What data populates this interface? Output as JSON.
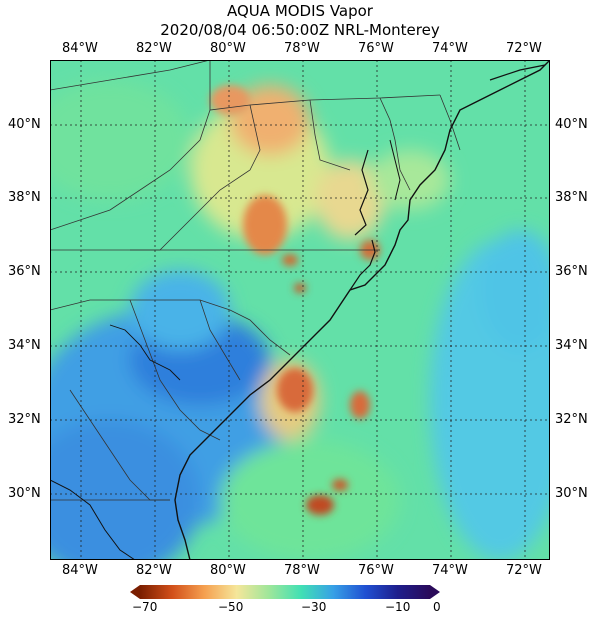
{
  "title_line1": "AQUA MODIS Vapor",
  "title_line2": "2020/08/04 06:50:00Z NRL-Monterey",
  "lon_labels": [
    "84°W",
    "82°W",
    "80°W",
    "78°W",
    "76°W",
    "74°W",
    "72°W"
  ],
  "lat_labels": [
    "40°N",
    "38°N",
    "36°N",
    "34°N",
    "32°N",
    "30°N"
  ],
  "colorbar": {
    "ticks": [
      "−70",
      "−50",
      "−30",
      "−10",
      "0"
    ],
    "colors": [
      "#7a1e00",
      "#d2501a",
      "#f5a050",
      "#f5e69a",
      "#9fe69a",
      "#41e0b4",
      "#37a0e6",
      "#2050d2",
      "#1e1e8c",
      "#2a0a5a"
    ]
  },
  "map": {
    "product": "water vapor",
    "colors": {
      "land_outline": "#1a1a1a",
      "grid": "#222222"
    }
  }
}
